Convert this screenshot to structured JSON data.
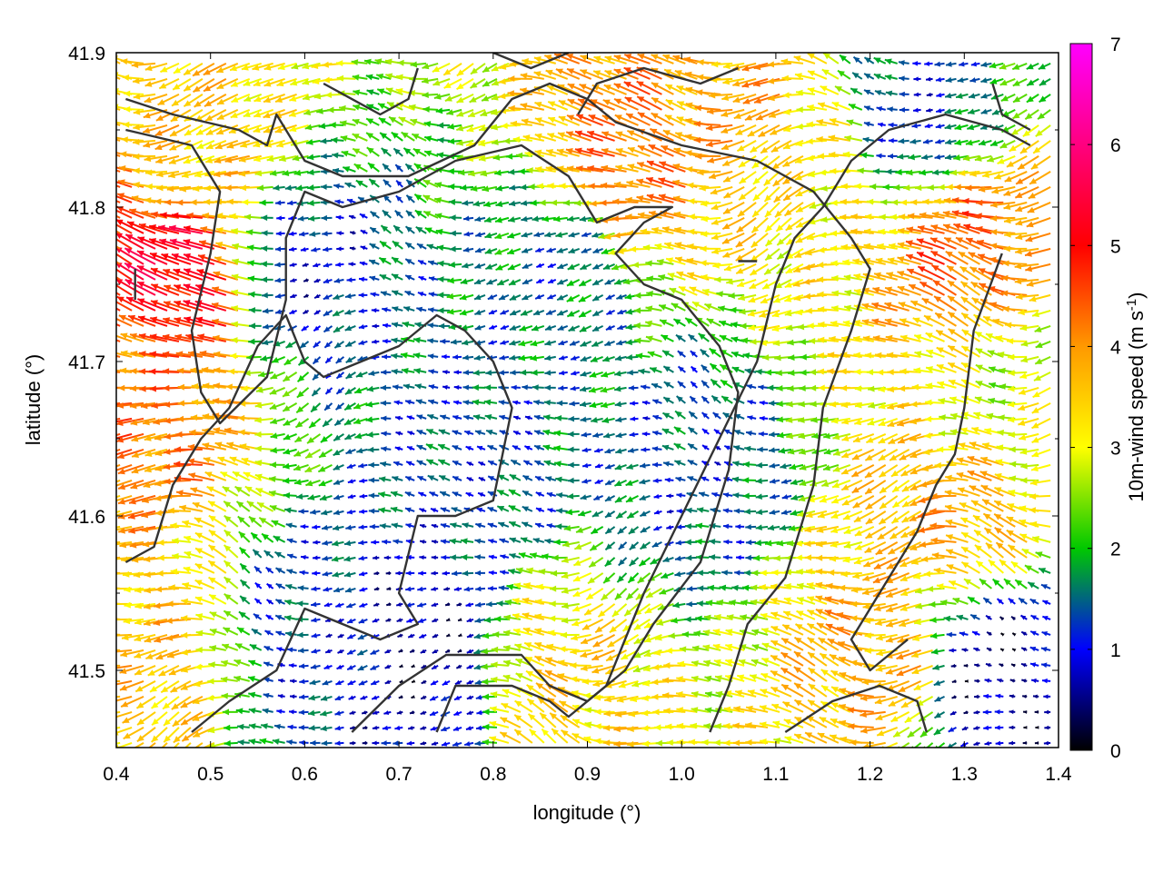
{
  "chart_data": {
    "type": "vector-field",
    "xlabel": "longitude (°)",
    "ylabel": "latitude (°)",
    "xlim": [
      0.4,
      1.4
    ],
    "ylim": [
      41.45,
      41.9
    ],
    "xticks": [
      "0.4",
      "0.5",
      "0.6",
      "0.7",
      "0.8",
      "0.9",
      "1.0",
      "1.1",
      "1.2",
      "1.3",
      "1.4"
    ],
    "yticks": [
      "41.5",
      "41.6",
      "41.7",
      "41.8",
      "41.9"
    ],
    "grid": false,
    "colorbar": {
      "label": "10m-wind speed (m s",
      "label_superscript": "-1",
      "label_suffix": ")",
      "range": [
        0,
        7
      ],
      "ticks": [
        "0",
        "1",
        "2",
        "3",
        "4",
        "5",
        "6",
        "7"
      ],
      "colors": [
        "#000000",
        "#0000ff",
        "#00c800",
        "#ffff00",
        "#ff9900",
        "#ff0000",
        "#ff00ff"
      ]
    },
    "vector_grid": {
      "dlon": 0.0125,
      "dlat": 0.01,
      "prevailing_direction": "from east"
    },
    "speed_field_centers": [
      {
        "lon": 0.44,
        "lat": 41.67,
        "speed": 4.2
      },
      {
        "lon": 0.48,
        "lat": 41.76,
        "speed": 5.2
      },
      {
        "lon": 0.5,
        "lat": 41.83,
        "speed": 3.5
      },
      {
        "lon": 0.44,
        "lat": 41.51,
        "speed": 3.6
      },
      {
        "lon": 0.95,
        "lat": 41.83,
        "speed": 4.2
      },
      {
        "lon": 1.08,
        "lat": 41.87,
        "speed": 3.8
      },
      {
        "lon": 1.15,
        "lat": 41.82,
        "speed": 3.2
      },
      {
        "lon": 1.31,
        "lat": 41.77,
        "speed": 4.3
      },
      {
        "lon": 1.3,
        "lat": 41.6,
        "speed": 3.8
      },
      {
        "lon": 1.22,
        "lat": 41.51,
        "speed": 3.8
      },
      {
        "lon": 0.89,
        "lat": 41.49,
        "speed": 3.4
      },
      {
        "lon": 1.35,
        "lat": 41.68,
        "speed": 2.8
      },
      {
        "lon": 0.78,
        "lat": 41.64,
        "speed": 1.3
      },
      {
        "lon": 0.62,
        "lat": 41.52,
        "speed": 1.2
      },
      {
        "lon": 0.88,
        "lat": 41.76,
        "speed": 1.5
      },
      {
        "lon": 1.33,
        "lat": 41.5,
        "speed": 0.5
      },
      {
        "lon": 0.72,
        "lat": 41.51,
        "speed": 0.6
      },
      {
        "lon": 0.6,
        "lat": 41.76,
        "speed": 1.0
      },
      {
        "lon": 1.02,
        "lat": 41.63,
        "speed": 1.3
      },
      {
        "lon": 1.25,
        "lat": 41.86,
        "speed": 1.2
      }
    ],
    "contours": [
      [
        [
          0.41,
          41.87
        ],
        [
          0.46,
          41.86
        ],
        [
          0.53,
          41.85
        ],
        [
          0.56,
          41.84
        ],
        [
          0.57,
          41.86
        ],
        [
          0.6,
          41.83
        ],
        [
          0.64,
          41.82
        ],
        [
          0.71,
          41.82
        ],
        [
          0.78,
          41.84
        ],
        [
          0.82,
          41.87
        ],
        [
          0.86,
          41.88
        ],
        [
          0.9,
          41.87
        ],
        [
          0.93,
          41.855
        ],
        [
          1.0,
          41.84
        ],
        [
          1.08,
          41.83
        ],
        [
          1.14,
          41.81
        ],
        [
          1.18,
          41.78
        ],
        [
          1.2,
          41.76
        ],
        [
          1.18,
          41.72
        ],
        [
          1.15,
          41.67
        ],
        [
          1.14,
          41.62
        ],
        [
          1.11,
          41.56
        ],
        [
          1.07,
          41.53
        ],
        [
          1.05,
          41.49
        ],
        [
          1.03,
          41.46
        ]
      ],
      [
        [
          0.41,
          41.85
        ],
        [
          0.48,
          41.84
        ],
        [
          0.51,
          41.81
        ],
        [
          0.5,
          41.77
        ],
        [
          0.48,
          41.72
        ],
        [
          0.49,
          41.68
        ],
        [
          0.51,
          41.66
        ],
        [
          0.56,
          41.69
        ],
        [
          0.58,
          41.74
        ],
        [
          0.58,
          41.78
        ],
        [
          0.6,
          41.81
        ],
        [
          0.64,
          41.8
        ],
        [
          0.7,
          41.81
        ],
        [
          0.76,
          41.83
        ],
        [
          0.83,
          41.84
        ],
        [
          0.88,
          41.82
        ],
        [
          0.91,
          41.79
        ],
        [
          0.95,
          41.8
        ],
        [
          0.99,
          41.8
        ],
        [
          0.96,
          41.79
        ],
        [
          0.93,
          41.77
        ],
        [
          0.96,
          41.75
        ],
        [
          1.0,
          41.74
        ],
        [
          1.04,
          41.71
        ],
        [
          1.06,
          41.68
        ],
        [
          1.05,
          41.63
        ],
        [
          1.02,
          41.57
        ],
        [
          0.97,
          41.53
        ],
        [
          0.94,
          41.5
        ],
        [
          0.9,
          41.48
        ],
        [
          0.86,
          41.49
        ],
        [
          0.83,
          41.51
        ],
        [
          0.75,
          41.51
        ],
        [
          0.7,
          41.49
        ],
        [
          0.65,
          41.46
        ]
      ],
      [
        [
          0.41,
          41.57
        ],
        [
          0.44,
          41.58
        ],
        [
          0.46,
          41.62
        ],
        [
          0.49,
          41.65
        ],
        [
          0.52,
          41.67
        ],
        [
          0.55,
          41.71
        ],
        [
          0.58,
          41.73
        ],
        [
          0.6,
          41.7
        ],
        [
          0.62,
          41.69
        ],
        [
          0.66,
          41.7
        ],
        [
          0.7,
          41.71
        ],
        [
          0.74,
          41.73
        ],
        [
          0.77,
          41.72
        ],
        [
          0.8,
          41.7
        ],
        [
          0.82,
          41.67
        ],
        [
          0.8,
          41.61
        ],
        [
          0.76,
          41.6
        ],
        [
          0.72,
          41.6
        ],
        [
          0.7,
          41.55
        ],
        [
          0.72,
          41.53
        ],
        [
          0.68,
          41.52
        ],
        [
          0.64,
          41.53
        ],
        [
          0.6,
          41.54
        ],
        [
          0.57,
          41.5
        ],
        [
          0.52,
          41.48
        ],
        [
          0.48,
          41.46
        ]
      ],
      [
        [
          0.74,
          41.46
        ],
        [
          0.76,
          41.49
        ],
        [
          0.82,
          41.49
        ],
        [
          0.86,
          41.48
        ],
        [
          0.88,
          41.47
        ],
        [
          0.92,
          41.49
        ],
        [
          0.96,
          41.55
        ],
        [
          1.0,
          41.6
        ],
        [
          1.04,
          41.65
        ],
        [
          1.08,
          41.7
        ],
        [
          1.1,
          41.75
        ],
        [
          1.12,
          41.78
        ],
        [
          1.15,
          41.8
        ],
        [
          1.18,
          41.83
        ],
        [
          1.22,
          41.85
        ],
        [
          1.28,
          41.86
        ],
        [
          1.34,
          41.85
        ],
        [
          1.37,
          41.84
        ]
      ],
      [
        [
          1.11,
          41.46
        ],
        [
          1.16,
          41.48
        ],
        [
          1.21,
          41.49
        ],
        [
          1.25,
          41.48
        ],
        [
          1.26,
          41.46
        ]
      ],
      [
        [
          1.34,
          41.77
        ],
        [
          1.31,
          41.72
        ],
        [
          1.3,
          41.67
        ],
        [
          1.29,
          41.64
        ],
        [
          1.27,
          41.62
        ],
        [
          1.25,
          41.59
        ],
        [
          1.21,
          41.55
        ],
        [
          1.18,
          41.52
        ],
        [
          1.2,
          41.5
        ],
        [
          1.22,
          41.51
        ],
        [
          1.24,
          41.52
        ]
      ],
      [
        [
          0.62,
          41.88
        ],
        [
          0.68,
          41.86
        ],
        [
          0.71,
          41.87
        ],
        [
          0.72,
          41.89
        ]
      ],
      [
        [
          0.8,
          41.9
        ],
        [
          0.84,
          41.89
        ],
        [
          0.88,
          41.9
        ]
      ],
      [
        [
          0.89,
          41.86
        ],
        [
          0.91,
          41.88
        ],
        [
          0.96,
          41.89
        ],
        [
          1.02,
          41.88
        ],
        [
          1.06,
          41.89
        ]
      ],
      [
        [
          1.06,
          41.765
        ],
        [
          1.08,
          41.765
        ]
      ],
      [
        [
          0.42,
          41.74
        ],
        [
          0.42,
          41.76
        ]
      ],
      [
        [
          1.33,
          41.88
        ],
        [
          1.34,
          41.86
        ],
        [
          1.37,
          41.85
        ]
      ]
    ]
  }
}
